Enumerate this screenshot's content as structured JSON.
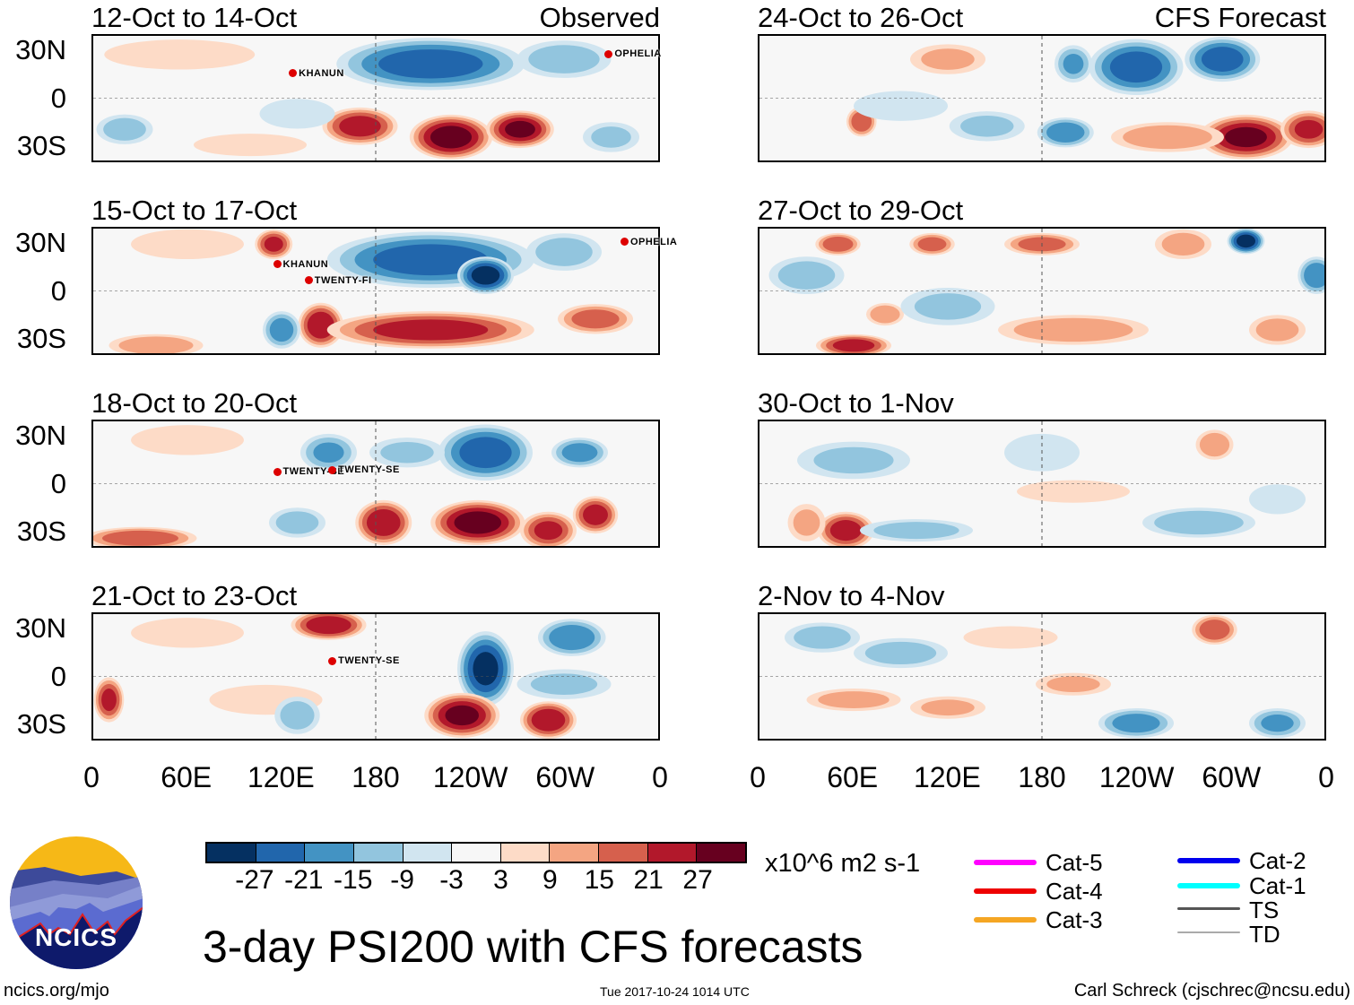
{
  "panels": [
    {
      "title": "12-Oct to 14-Oct",
      "tag": "Observed",
      "storms": [
        {
          "name": "KHANUN",
          "lon": 125,
          "lat": 15
        },
        {
          "name": "OPHELIA",
          "lon": 325,
          "lat": 27
        }
      ],
      "centers": [
        [
          215,
          22,
          50,
          14,
          -24
        ],
        [
          300,
          25,
          25,
          10,
          -12
        ],
        [
          170,
          -18,
          20,
          10,
          24
        ],
        [
          228,
          -25,
          22,
          12,
          30
        ],
        [
          272,
          -20,
          18,
          10,
          28
        ],
        [
          55,
          28,
          40,
          8,
          8
        ],
        [
          20,
          -20,
          15,
          8,
          -12
        ],
        [
          330,
          -25,
          15,
          8,
          -10
        ],
        [
          130,
          -10,
          20,
          8,
          -5
        ],
        [
          100,
          -30,
          30,
          6,
          8
        ]
      ]
    },
    {
      "title": "15-Oct to 17-Oct",
      "tag": "",
      "storms": [
        {
          "name": "KHANUN",
          "lon": 115,
          "lat": 16
        },
        {
          "name": "TWENTY-FI",
          "lon": 135,
          "lat": 6
        },
        {
          "name": "OPHELIA",
          "lon": 335,
          "lat": 30
        }
      ],
      "centers": [
        [
          215,
          20,
          55,
          15,
          -24
        ],
        [
          250,
          10,
          15,
          10,
          -30
        ],
        [
          115,
          30,
          10,
          8,
          22
        ],
        [
          145,
          -22,
          12,
          12,
          26
        ],
        [
          215,
          -25,
          55,
          10,
          24
        ],
        [
          320,
          -18,
          20,
          8,
          18
        ],
        [
          120,
          -25,
          10,
          10,
          -18
        ],
        [
          40,
          -35,
          25,
          6,
          14
        ],
        [
          60,
          30,
          30,
          8,
          8
        ],
        [
          300,
          25,
          20,
          10,
          -12
        ]
      ]
    },
    {
      "title": "18-Oct to 20-Oct",
      "tag": "",
      "storms": [
        {
          "name": "TWENTY-SE",
          "lon": 115,
          "lat": 7
        },
        {
          "name": "TWENTY-SE",
          "lon": 150,
          "lat": 8
        }
      ],
      "centers": [
        [
          250,
          20,
          25,
          15,
          -24
        ],
        [
          310,
          20,
          15,
          8,
          -18
        ],
        [
          185,
          -25,
          15,
          12,
          26
        ],
        [
          245,
          -25,
          25,
          12,
          30
        ],
        [
          290,
          -30,
          15,
          10,
          22
        ],
        [
          320,
          -20,
          12,
          10,
          24
        ],
        [
          130,
          -25,
          15,
          8,
          -12
        ],
        [
          30,
          -35,
          30,
          6,
          20
        ],
        [
          60,
          28,
          30,
          8,
          8
        ],
        [
          200,
          20,
          20,
          8,
          -10
        ],
        [
          150,
          20,
          15,
          10,
          -15
        ]
      ]
    },
    {
      "title": "21-Oct to 23-Oct",
      "tag": "",
      "storms": [
        {
          "name": "TWENTY-SE",
          "lon": 150,
          "lat": 9
        }
      ],
      "centers": [
        [
          150,
          33,
          20,
          8,
          26
        ],
        [
          250,
          5,
          15,
          20,
          -28
        ],
        [
          305,
          25,
          18,
          10,
          -20
        ],
        [
          235,
          -25,
          20,
          12,
          28
        ],
        [
          290,
          -28,
          15,
          10,
          26
        ],
        [
          10,
          -15,
          8,
          12,
          22
        ],
        [
          110,
          -15,
          30,
          8,
          8
        ],
        [
          130,
          -25,
          12,
          10,
          -12
        ],
        [
          300,
          -5,
          25,
          8,
          -10
        ],
        [
          60,
          28,
          30,
          8,
          8
        ]
      ]
    },
    {
      "title": "24-Oct to 26-Oct",
      "tag": "CFS Forecast",
      "storms": [],
      "centers": [
        [
          240,
          20,
          25,
          15,
          -24
        ],
        [
          295,
          25,
          20,
          12,
          -24
        ],
        [
          200,
          22,
          10,
          10,
          -15
        ],
        [
          65,
          -15,
          8,
          8,
          20
        ],
        [
          310,
          -25,
          25,
          12,
          28
        ],
        [
          350,
          -20,
          15,
          10,
          22
        ],
        [
          195,
          -22,
          15,
          8,
          -20
        ],
        [
          90,
          -5,
          25,
          8,
          -8
        ],
        [
          145,
          -18,
          20,
          8,
          -10
        ],
        [
          260,
          -25,
          30,
          8,
          14
        ],
        [
          120,
          25,
          20,
          8,
          10
        ]
      ]
    },
    {
      "title": "27-Oct to 29-Oct",
      "tag": "",
      "storms": [],
      "centers": [
        [
          60,
          -35,
          20,
          6,
          24
        ],
        [
          50,
          30,
          12,
          6,
          20
        ],
        [
          110,
          30,
          12,
          6,
          18
        ],
        [
          180,
          30,
          20,
          6,
          18
        ],
        [
          270,
          30,
          15,
          8,
          12
        ],
        [
          310,
          32,
          10,
          7,
          -30
        ],
        [
          355,
          10,
          10,
          10,
          -20
        ],
        [
          30,
          10,
          20,
          10,
          -12
        ],
        [
          200,
          -25,
          40,
          8,
          14
        ],
        [
          80,
          -15,
          10,
          6,
          14
        ],
        [
          120,
          -10,
          25,
          10,
          -10
        ],
        [
          330,
          -25,
          15,
          8,
          12
        ]
      ]
    },
    {
      "title": "30-Oct to 1-Nov",
      "tag": "",
      "storms": [],
      "centers": [
        [
          55,
          -30,
          15,
          10,
          24
        ],
        [
          100,
          -30,
          30,
          6,
          -12
        ],
        [
          280,
          -25,
          30,
          8,
          -14
        ],
        [
          290,
          25,
          10,
          8,
          14
        ],
        [
          60,
          15,
          30,
          10,
          -10
        ],
        [
          180,
          20,
          20,
          10,
          -8
        ],
        [
          30,
          -25,
          10,
          10,
          10
        ],
        [
          200,
          -5,
          30,
          6,
          8
        ],
        [
          330,
          -10,
          15,
          8,
          -8
        ]
      ]
    },
    {
      "title": "2-Nov to 4-Nov",
      "tag": "",
      "storms": [],
      "centers": [
        [
          40,
          25,
          20,
          8,
          -12
        ],
        [
          90,
          15,
          25,
          8,
          -12
        ],
        [
          290,
          30,
          12,
          8,
          20
        ],
        [
          60,
          -15,
          25,
          6,
          12
        ],
        [
          240,
          -30,
          20,
          8,
          -18
        ],
        [
          330,
          -30,
          15,
          8,
          -16
        ],
        [
          120,
          -20,
          20,
          6,
          10
        ],
        [
          200,
          -5,
          20,
          6,
          10
        ],
        [
          160,
          25,
          25,
          6,
          8
        ]
      ]
    }
  ],
  "lat_labels": [
    "30N",
    "0",
    "30S"
  ],
  "lon_labels": [
    "0",
    "60E",
    "120E",
    "180",
    "120W",
    "60W",
    "0"
  ],
  "colorbar": {
    "colors": [
      "#053061",
      "#2166ac",
      "#4393c3",
      "#92c5de",
      "#d1e5f0",
      "#f7f7f7",
      "#fddbc7",
      "#f4a582",
      "#d6604d",
      "#b2182b",
      "#67001f"
    ],
    "labels": [
      "-27",
      "-21",
      "-15",
      "-9",
      "-3",
      "3",
      "9",
      "15",
      "21",
      "27"
    ],
    "levels": [
      -27,
      -21,
      -15,
      -9,
      -3,
      3,
      9,
      15,
      21,
      27
    ],
    "units": "x10^6 m2 s-1"
  },
  "legend": [
    {
      "label": "Cat-5",
      "color": "#ff00ff"
    },
    {
      "label": "Cat-4",
      "color": "#ee0000"
    },
    {
      "label": "Cat-3",
      "color": "#f5a623"
    },
    {
      "label": "Cat-2",
      "color": "#0000ee"
    },
    {
      "label": "Cat-1",
      "color": "#00ffff"
    },
    {
      "label": "TS",
      "color": "#555555"
    },
    {
      "label": "TD",
      "color": "#aaaaaa"
    }
  ],
  "title": "3-day PSI200 with CFS forecasts",
  "logo_text": "NCICS",
  "site": "ncics.org/mjo",
  "timestamp": "Tue 2017-10-24 1014 UTC",
  "author": "Carl Schreck (cjschrec@ncsu.edu)"
}
